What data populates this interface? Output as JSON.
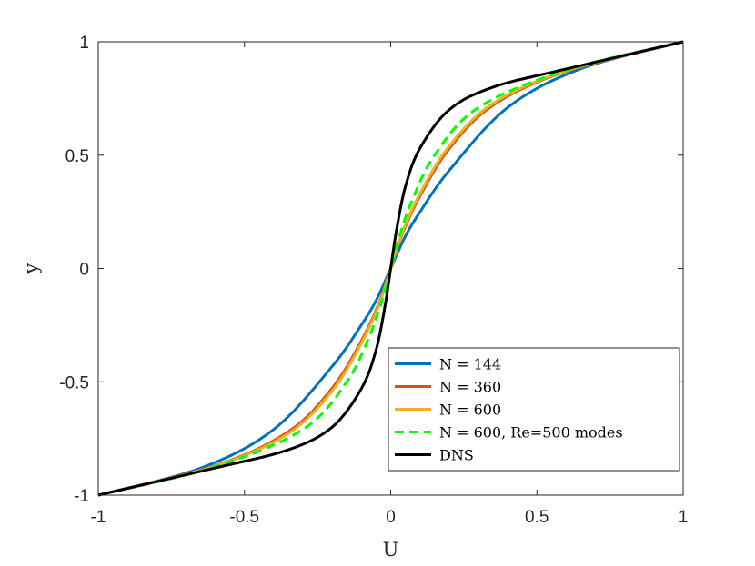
{
  "chart_data": {
    "type": "line",
    "xlabel": "U",
    "ylabel": "y",
    "xlim": [
      -1,
      1
    ],
    "ylim": [
      -1,
      1
    ],
    "xticks": [
      "-1",
      "-0.5",
      "0",
      "0.5",
      "1"
    ],
    "yticks": [
      "-1",
      "-0.5",
      "0",
      "0.5",
      "1"
    ],
    "grid": false,
    "legend_position": "bottom-right",
    "series": [
      {
        "name": "N = 144",
        "color": "#0072bd",
        "dashed": false,
        "points": [
          [
            -1,
            -1
          ],
          [
            -0.65,
            -0.881
          ],
          [
            -0.4,
            -0.71
          ],
          [
            -0.2,
            -0.432
          ],
          [
            -0.1,
            -0.249
          ],
          [
            -0.05,
            -0.142
          ],
          [
            0,
            0
          ],
          [
            0.05,
            0.142
          ],
          [
            0.1,
            0.249
          ],
          [
            0.2,
            0.432
          ],
          [
            0.4,
            0.71
          ],
          [
            0.65,
            0.881
          ],
          [
            1,
            1
          ]
        ]
      },
      {
        "name": "N = 360",
        "color": "#d95319",
        "dashed": false,
        "points": [
          [
            -1,
            -1
          ],
          [
            -0.6,
            -0.87
          ],
          [
            -0.35,
            -0.72
          ],
          [
            -0.2,
            -0.528
          ],
          [
            -0.1,
            -0.319
          ],
          [
            -0.04,
            -0.153
          ],
          [
            0,
            0
          ],
          [
            0.04,
            0.153
          ],
          [
            0.1,
            0.319
          ],
          [
            0.2,
            0.528
          ],
          [
            0.35,
            0.72
          ],
          [
            0.6,
            0.87
          ],
          [
            1,
            1
          ]
        ]
      },
      {
        "name": "N = 600",
        "color": "#edb120",
        "dashed": false,
        "points": [
          [
            -1,
            -1
          ],
          [
            -0.6,
            -0.872
          ],
          [
            -0.35,
            -0.728
          ],
          [
            -0.2,
            -0.54
          ],
          [
            -0.1,
            -0.33
          ],
          [
            -0.04,
            -0.16
          ],
          [
            0,
            0
          ],
          [
            0.04,
            0.16
          ],
          [
            0.1,
            0.33
          ],
          [
            0.2,
            0.54
          ],
          [
            0.35,
            0.728
          ],
          [
            0.6,
            0.872
          ],
          [
            1,
            1
          ]
        ]
      },
      {
        "name": "N = 600, Re=500 modes",
        "color": "#00ff00",
        "dashed": true,
        "points": [
          [
            -1,
            -1
          ],
          [
            -0.6,
            -0.875
          ],
          [
            -0.3,
            -0.71
          ],
          [
            -0.15,
            -0.5
          ],
          [
            -0.07,
            -0.29
          ],
          [
            -0.03,
            -0.14
          ],
          [
            0,
            0
          ],
          [
            0.03,
            0.14
          ],
          [
            0.07,
            0.29
          ],
          [
            0.15,
            0.5
          ],
          [
            0.3,
            0.71
          ],
          [
            0.6,
            0.875
          ],
          [
            1,
            1
          ]
        ]
      },
      {
        "name": "DNS",
        "color": "#000000",
        "dashed": false,
        "points": [
          [
            -1,
            -1
          ],
          [
            -0.6,
            -0.88
          ],
          [
            -0.35,
            -0.8
          ],
          [
            -0.2,
            -0.7
          ],
          [
            -0.1,
            -0.53
          ],
          [
            -0.05,
            -0.36
          ],
          [
            -0.02,
            -0.17
          ],
          [
            0,
            0
          ],
          [
            0.02,
            0.17
          ],
          [
            0.05,
            0.36
          ],
          [
            0.1,
            0.53
          ],
          [
            0.2,
            0.7
          ],
          [
            0.35,
            0.8
          ],
          [
            0.6,
            0.88
          ],
          [
            1,
            1
          ]
        ]
      }
    ]
  }
}
